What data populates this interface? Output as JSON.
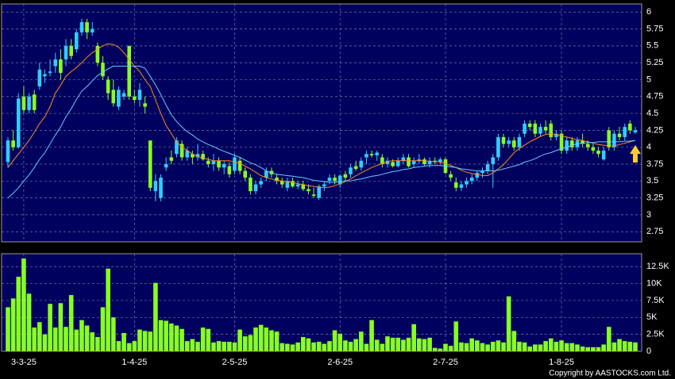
{
  "chart_data": [
    {
      "type": "candlestick",
      "categories": [
        null,
        null,
        null,
        "3-3-25",
        null,
        null,
        null,
        null,
        null,
        null,
        null,
        null,
        null,
        null,
        null,
        null,
        null,
        null,
        null,
        null,
        null,
        null,
        null,
        null,
        "1-4-25",
        null,
        null,
        null,
        null,
        null,
        null,
        null,
        null,
        null,
        null,
        null,
        null,
        null,
        null,
        null,
        null,
        null,
        null,
        "2-5-25",
        null,
        null,
        null,
        null,
        null,
        null,
        null,
        null,
        null,
        null,
        null,
        null,
        null,
        null,
        null,
        null,
        null,
        null,
        null,
        "2-6-25",
        null,
        null,
        null,
        null,
        null,
        null,
        null,
        null,
        null,
        null,
        null,
        null,
        null,
        null,
        null,
        null,
        null,
        null,
        null,
        "2-7-25",
        null,
        null,
        null,
        null,
        null,
        null,
        null,
        null,
        null,
        null,
        null,
        null,
        null,
        null,
        null,
        null,
        null,
        null,
        null,
        null,
        null,
        "1-8-25",
        null,
        null,
        null,
        null,
        null,
        null,
        null,
        null,
        null,
        null,
        null,
        null,
        null,
        null
      ],
      "ohlc": [
        [
          3.78,
          4.15,
          3.7,
          4.1
        ],
        [
          4.1,
          4.25,
          3.95,
          4.0
        ],
        [
          4.0,
          4.8,
          3.98,
          4.72
        ],
        [
          4.75,
          4.9,
          4.5,
          4.55
        ],
        [
          4.55,
          4.8,
          4.5,
          4.75
        ],
        [
          4.78,
          4.85,
          4.5,
          4.55
        ],
        [
          4.9,
          5.25,
          4.85,
          5.15
        ],
        [
          5.05,
          5.15,
          4.95,
          5.08
        ],
        [
          5.1,
          5.3,
          5.05,
          5.12
        ],
        [
          5.2,
          5.4,
          5.1,
          5.3
        ],
        [
          5.3,
          5.45,
          5.0,
          5.1
        ],
        [
          5.3,
          5.6,
          5.2,
          5.5
        ],
        [
          5.5,
          5.6,
          5.3,
          5.35
        ],
        [
          5.45,
          5.75,
          5.4,
          5.7
        ],
        [
          5.7,
          5.9,
          5.65,
          5.85
        ],
        [
          5.85,
          5.9,
          5.6,
          5.7
        ],
        [
          5.7,
          5.85,
          5.65,
          5.75
        ],
        [
          5.5,
          5.55,
          5.2,
          5.25
        ],
        [
          5.25,
          5.35,
          5.0,
          5.05
        ],
        [
          5.0,
          5.05,
          4.7,
          4.8
        ],
        [
          4.85,
          5.0,
          4.6,
          4.65
        ],
        [
          4.6,
          4.9,
          4.55,
          4.85
        ],
        [
          4.75,
          4.85,
          4.7,
          4.8
        ],
        [
          5.5,
          5.5,
          4.7,
          4.75
        ],
        [
          4.75,
          4.85,
          4.65,
          4.7
        ],
        [
          4.7,
          4.95,
          4.6,
          4.85
        ],
        [
          4.65,
          4.75,
          4.5,
          4.6
        ],
        [
          4.1,
          4.1,
          3.35,
          3.4
        ],
        [
          3.35,
          3.6,
          3.2,
          3.5
        ],
        [
          3.25,
          3.6,
          3.2,
          3.55
        ],
        [
          3.7,
          3.85,
          3.65,
          3.75
        ],
        [
          3.85,
          3.95,
          3.75,
          3.8
        ],
        [
          3.9,
          4.15,
          3.85,
          4.1
        ],
        [
          4.05,
          4.1,
          3.8,
          3.85
        ],
        [
          3.85,
          4.0,
          3.8,
          3.95
        ],
        [
          3.9,
          3.95,
          3.75,
          3.85
        ],
        [
          3.85,
          4.05,
          3.8,
          3.9
        ],
        [
          3.9,
          3.95,
          3.8,
          3.82
        ],
        [
          3.8,
          3.85,
          3.7,
          3.75
        ],
        [
          3.75,
          3.9,
          3.65,
          3.8
        ],
        [
          3.8,
          3.85,
          3.65,
          3.7
        ],
        [
          3.7,
          3.8,
          3.6,
          3.75
        ],
        [
          3.72,
          3.78,
          3.55,
          3.6
        ],
        [
          3.65,
          3.9,
          3.6,
          3.85
        ],
        [
          3.8,
          3.85,
          3.6,
          3.65
        ],
        [
          3.65,
          3.7,
          3.5,
          3.55
        ],
        [
          3.55,
          3.6,
          3.3,
          3.35
        ],
        [
          3.35,
          3.5,
          3.3,
          3.45
        ],
        [
          3.45,
          3.55,
          3.4,
          3.5
        ],
        [
          3.55,
          3.7,
          3.5,
          3.65
        ],
        [
          3.65,
          3.7,
          3.55,
          3.6
        ],
        [
          3.55,
          3.6,
          3.45,
          3.5
        ],
        [
          3.5,
          3.55,
          3.4,
          3.45
        ],
        [
          3.4,
          3.55,
          3.35,
          3.5
        ],
        [
          3.5,
          3.55,
          3.4,
          3.42
        ],
        [
          3.42,
          3.5,
          3.38,
          3.45
        ],
        [
          3.45,
          3.5,
          3.35,
          3.38
        ],
        [
          3.38,
          3.45,
          3.3,
          3.35
        ],
        [
          3.3,
          3.4,
          3.25,
          3.28
        ],
        [
          3.25,
          3.45,
          3.22,
          3.42
        ],
        [
          3.42,
          3.5,
          3.35,
          3.45
        ],
        [
          3.5,
          3.6,
          3.45,
          3.55
        ],
        [
          3.55,
          3.6,
          3.45,
          3.5
        ],
        [
          3.45,
          3.6,
          3.4,
          3.58
        ],
        [
          3.6,
          3.65,
          3.5,
          3.55
        ],
        [
          3.6,
          3.75,
          3.55,
          3.7
        ],
        [
          3.72,
          3.8,
          3.65,
          3.68
        ],
        [
          3.7,
          3.85,
          3.65,
          3.8
        ],
        [
          3.85,
          3.95,
          3.75,
          3.9
        ],
        [
          3.9,
          3.95,
          3.85,
          3.88
        ],
        [
          3.88,
          3.95,
          3.8,
          3.92
        ],
        [
          3.85,
          3.9,
          3.7,
          3.75
        ],
        [
          3.75,
          3.85,
          3.7,
          3.8
        ],
        [
          3.78,
          3.82,
          3.7,
          3.72
        ],
        [
          3.72,
          3.85,
          3.7,
          3.8
        ],
        [
          3.8,
          3.9,
          3.75,
          3.85
        ],
        [
          3.85,
          3.9,
          3.7,
          3.72
        ],
        [
          3.75,
          3.85,
          3.7,
          3.8
        ],
        [
          3.8,
          3.9,
          3.75,
          3.82
        ],
        [
          3.82,
          3.85,
          3.72,
          3.75
        ],
        [
          3.75,
          3.85,
          3.7,
          3.8
        ],
        [
          3.8,
          3.85,
          3.75,
          3.78
        ],
        [
          3.78,
          3.85,
          3.75,
          3.82
        ],
        [
          3.82,
          3.85,
          3.6,
          3.62
        ],
        [
          3.6,
          3.65,
          3.5,
          3.55
        ],
        [
          3.48,
          3.55,
          3.35,
          3.4
        ],
        [
          3.4,
          3.5,
          3.35,
          3.45
        ],
        [
          3.45,
          3.55,
          3.4,
          3.5
        ],
        [
          3.5,
          3.6,
          3.45,
          3.55
        ],
        [
          3.55,
          3.65,
          3.5,
          3.62
        ],
        [
          3.62,
          3.7,
          3.55,
          3.65
        ],
        [
          3.65,
          3.8,
          3.6,
          3.75
        ],
        [
          3.75,
          3.9,
          3.4,
          3.85
        ],
        [
          3.85,
          4.2,
          3.8,
          4.15
        ],
        [
          4.15,
          4.2,
          4.0,
          4.05
        ],
        [
          4.05,
          4.15,
          4.0,
          4.1
        ],
        [
          4.1,
          4.15,
          3.95,
          4.0
        ],
        [
          4.0,
          4.2,
          3.95,
          4.15
        ],
        [
          4.2,
          4.4,
          4.15,
          4.35
        ],
        [
          4.35,
          4.4,
          4.25,
          4.3
        ],
        [
          4.35,
          4.4,
          4.15,
          4.2
        ],
        [
          4.2,
          4.35,
          4.15,
          4.3
        ],
        [
          4.3,
          4.4,
          4.2,
          4.25
        ],
        [
          4.35,
          4.4,
          4.1,
          4.15
        ],
        [
          4.15,
          4.25,
          4.1,
          4.2
        ],
        [
          4.2,
          4.25,
          3.9,
          3.95
        ],
        [
          3.95,
          4.15,
          3.9,
          4.1
        ],
        [
          4.1,
          4.15,
          3.95,
          4.0
        ],
        [
          4.0,
          4.15,
          3.95,
          4.1
        ],
        [
          4.1,
          4.2,
          4.0,
          4.05
        ],
        [
          4.05,
          4.1,
          3.95,
          4.0
        ],
        [
          4.0,
          4.05,
          3.9,
          3.95
        ],
        [
          3.95,
          4.0,
          3.85,
          3.9
        ],
        [
          3.82,
          4.0,
          3.8,
          3.95
        ],
        [
          4.25,
          4.3,
          3.95,
          4.0
        ],
        [
          4.0,
          4.25,
          3.95,
          4.2
        ],
        [
          4.2,
          4.3,
          4.1,
          4.15
        ],
        [
          4.15,
          4.35,
          4.1,
          4.3
        ],
        [
          4.35,
          4.4,
          4.2,
          4.25
        ],
        [
          4.22,
          4.3,
          4.2,
          4.25
        ]
      ],
      "up_color": "#33ccff",
      "down_color": "#88ff22",
      "series": [
        {
          "color": "#ff8c1a",
          "values": [
            3.7,
            3.8,
            3.9,
            4.0,
            4.1,
            4.22,
            4.35,
            4.45,
            4.6,
            4.8,
            4.92,
            5.05,
            5.12,
            5.18,
            5.25,
            5.33,
            5.4,
            5.45,
            5.5,
            5.53,
            5.52,
            5.48,
            5.4,
            5.3,
            5.2,
            5.12,
            5.0,
            4.9,
            4.7,
            4.5,
            4.32,
            4.2,
            4.08,
            4.0,
            3.95,
            3.9,
            3.86,
            3.84,
            3.82,
            3.8,
            3.8,
            3.8,
            3.8,
            3.78,
            3.76,
            3.72,
            3.68,
            3.63,
            3.58,
            3.55,
            3.53,
            3.51,
            3.5,
            3.49,
            3.48,
            3.46,
            3.45,
            3.43,
            3.42,
            3.41,
            3.4,
            3.41,
            3.43,
            3.46,
            3.49,
            3.53,
            3.58,
            3.62,
            3.66,
            3.7,
            3.73,
            3.76,
            3.79,
            3.8,
            3.8,
            3.8,
            3.8,
            3.8,
            3.8,
            3.8,
            3.79,
            3.79,
            3.78,
            3.76,
            3.73,
            3.7,
            3.66,
            3.63,
            3.61,
            3.6,
            3.58,
            3.58,
            3.62,
            3.68,
            3.74,
            3.83,
            3.92,
            3.98,
            4.03,
            4.08,
            4.12,
            4.16,
            4.19,
            4.2,
            4.19,
            4.17,
            4.15,
            4.13,
            4.11,
            4.1,
            4.08,
            4.06,
            4.04,
            4.03,
            4.02,
            4.02,
            4.04,
            4.06,
            4.08,
            4.1
          ]
        },
        {
          "color": "#66ccff",
          "values": [
            3.25,
            3.32,
            3.4,
            3.5,
            3.59,
            3.7,
            3.82,
            3.92,
            4.05,
            4.18,
            4.3,
            4.45,
            4.57,
            4.71,
            4.83,
            4.9,
            4.98,
            5.06,
            5.11,
            5.16,
            5.2,
            5.2,
            5.2,
            5.2,
            5.2,
            5.2,
            5.17,
            5.05,
            4.92,
            4.78,
            4.62,
            4.48,
            4.38,
            4.3,
            4.23,
            4.18,
            4.12,
            4.08,
            4.04,
            4.01,
            3.97,
            3.94,
            3.91,
            3.88,
            3.85,
            3.81,
            3.77,
            3.74,
            3.7,
            3.65,
            3.62,
            3.6,
            3.59,
            3.58,
            3.57,
            3.56,
            3.55,
            3.53,
            3.51,
            3.5,
            3.49,
            3.48,
            3.48,
            3.49,
            3.5,
            3.5,
            3.52,
            3.53,
            3.55,
            3.57,
            3.58,
            3.6,
            3.62,
            3.64,
            3.65,
            3.67,
            3.68,
            3.7,
            3.71,
            3.72,
            3.73,
            3.73,
            3.73,
            3.72,
            3.71,
            3.7,
            3.68,
            3.67,
            3.66,
            3.65,
            3.65,
            3.65,
            3.65,
            3.66,
            3.68,
            3.7,
            3.72,
            3.74,
            3.78,
            3.8,
            3.83,
            3.87,
            3.9,
            3.92,
            3.95,
            3.98,
            4.0,
            4.03,
            4.05,
            4.06,
            4.07,
            4.07,
            4.08,
            4.08,
            4.08,
            4.08,
            4.08,
            4.09,
            4.09,
            4.1
          ]
        }
      ],
      "ylim": [
        2.6,
        6.12
      ],
      "yticks": [
        6,
        5.75,
        5.5,
        5.25,
        5,
        4.75,
        4.5,
        4.25,
        4,
        3.75,
        3.5,
        3.25,
        3,
        2.75
      ],
      "grid": true
    },
    {
      "type": "bar",
      "color": "#88ff22",
      "values": [
        6500,
        7800,
        11000,
        13700,
        8500,
        3500,
        4300,
        2500,
        7000,
        3500,
        7100,
        3600,
        8300,
        3200,
        4600,
        3800,
        2800,
        2100,
        6500,
        12200,
        5000,
        1500,
        2700,
        1200,
        1500,
        3200,
        3000,
        2900,
        10100,
        4600,
        4500,
        4100,
        3800,
        3300,
        1500,
        1800,
        1400,
        3500,
        3300,
        1300,
        1500,
        1400,
        1400,
        1300,
        3200,
        2200,
        2400,
        3500,
        3900,
        3500,
        3100,
        2900,
        1200,
        1100,
        1000,
        1300,
        2100,
        1900,
        1300,
        1400,
        1100,
        1500,
        3100,
        2600,
        1600,
        1400,
        1800,
        2900,
        1100,
        4600,
        1700,
        1100,
        2200,
        2000,
        2000,
        1700,
        2000,
        4000,
        1900,
        1800,
        2000,
        500,
        400,
        1100,
        800,
        4400,
        1300,
        1200,
        1900,
        1600,
        1200,
        1000,
        1400,
        1600,
        1300,
        8100,
        3000,
        1400,
        1300,
        700,
        1000,
        1000,
        1500,
        1900,
        1400,
        1600,
        1200,
        1200,
        1000,
        700,
        600,
        600,
        600,
        1000,
        3600,
        1300,
        1800,
        1500,
        1400,
        1300
      ],
      "ylim": [
        0,
        14400
      ],
      "yticks": [
        {
          "value": 12500,
          "label": "12.5K"
        },
        {
          "value": 10000,
          "label": "10K"
        },
        {
          "value": 7500,
          "label": "7.5K"
        },
        {
          "value": 5000,
          "label": "5K"
        },
        {
          "value": 2500,
          "label": "2.5K"
        },
        0
      ],
      "grid": true
    }
  ],
  "footer": "Copyright by AASTOCKS.com Ltd."
}
